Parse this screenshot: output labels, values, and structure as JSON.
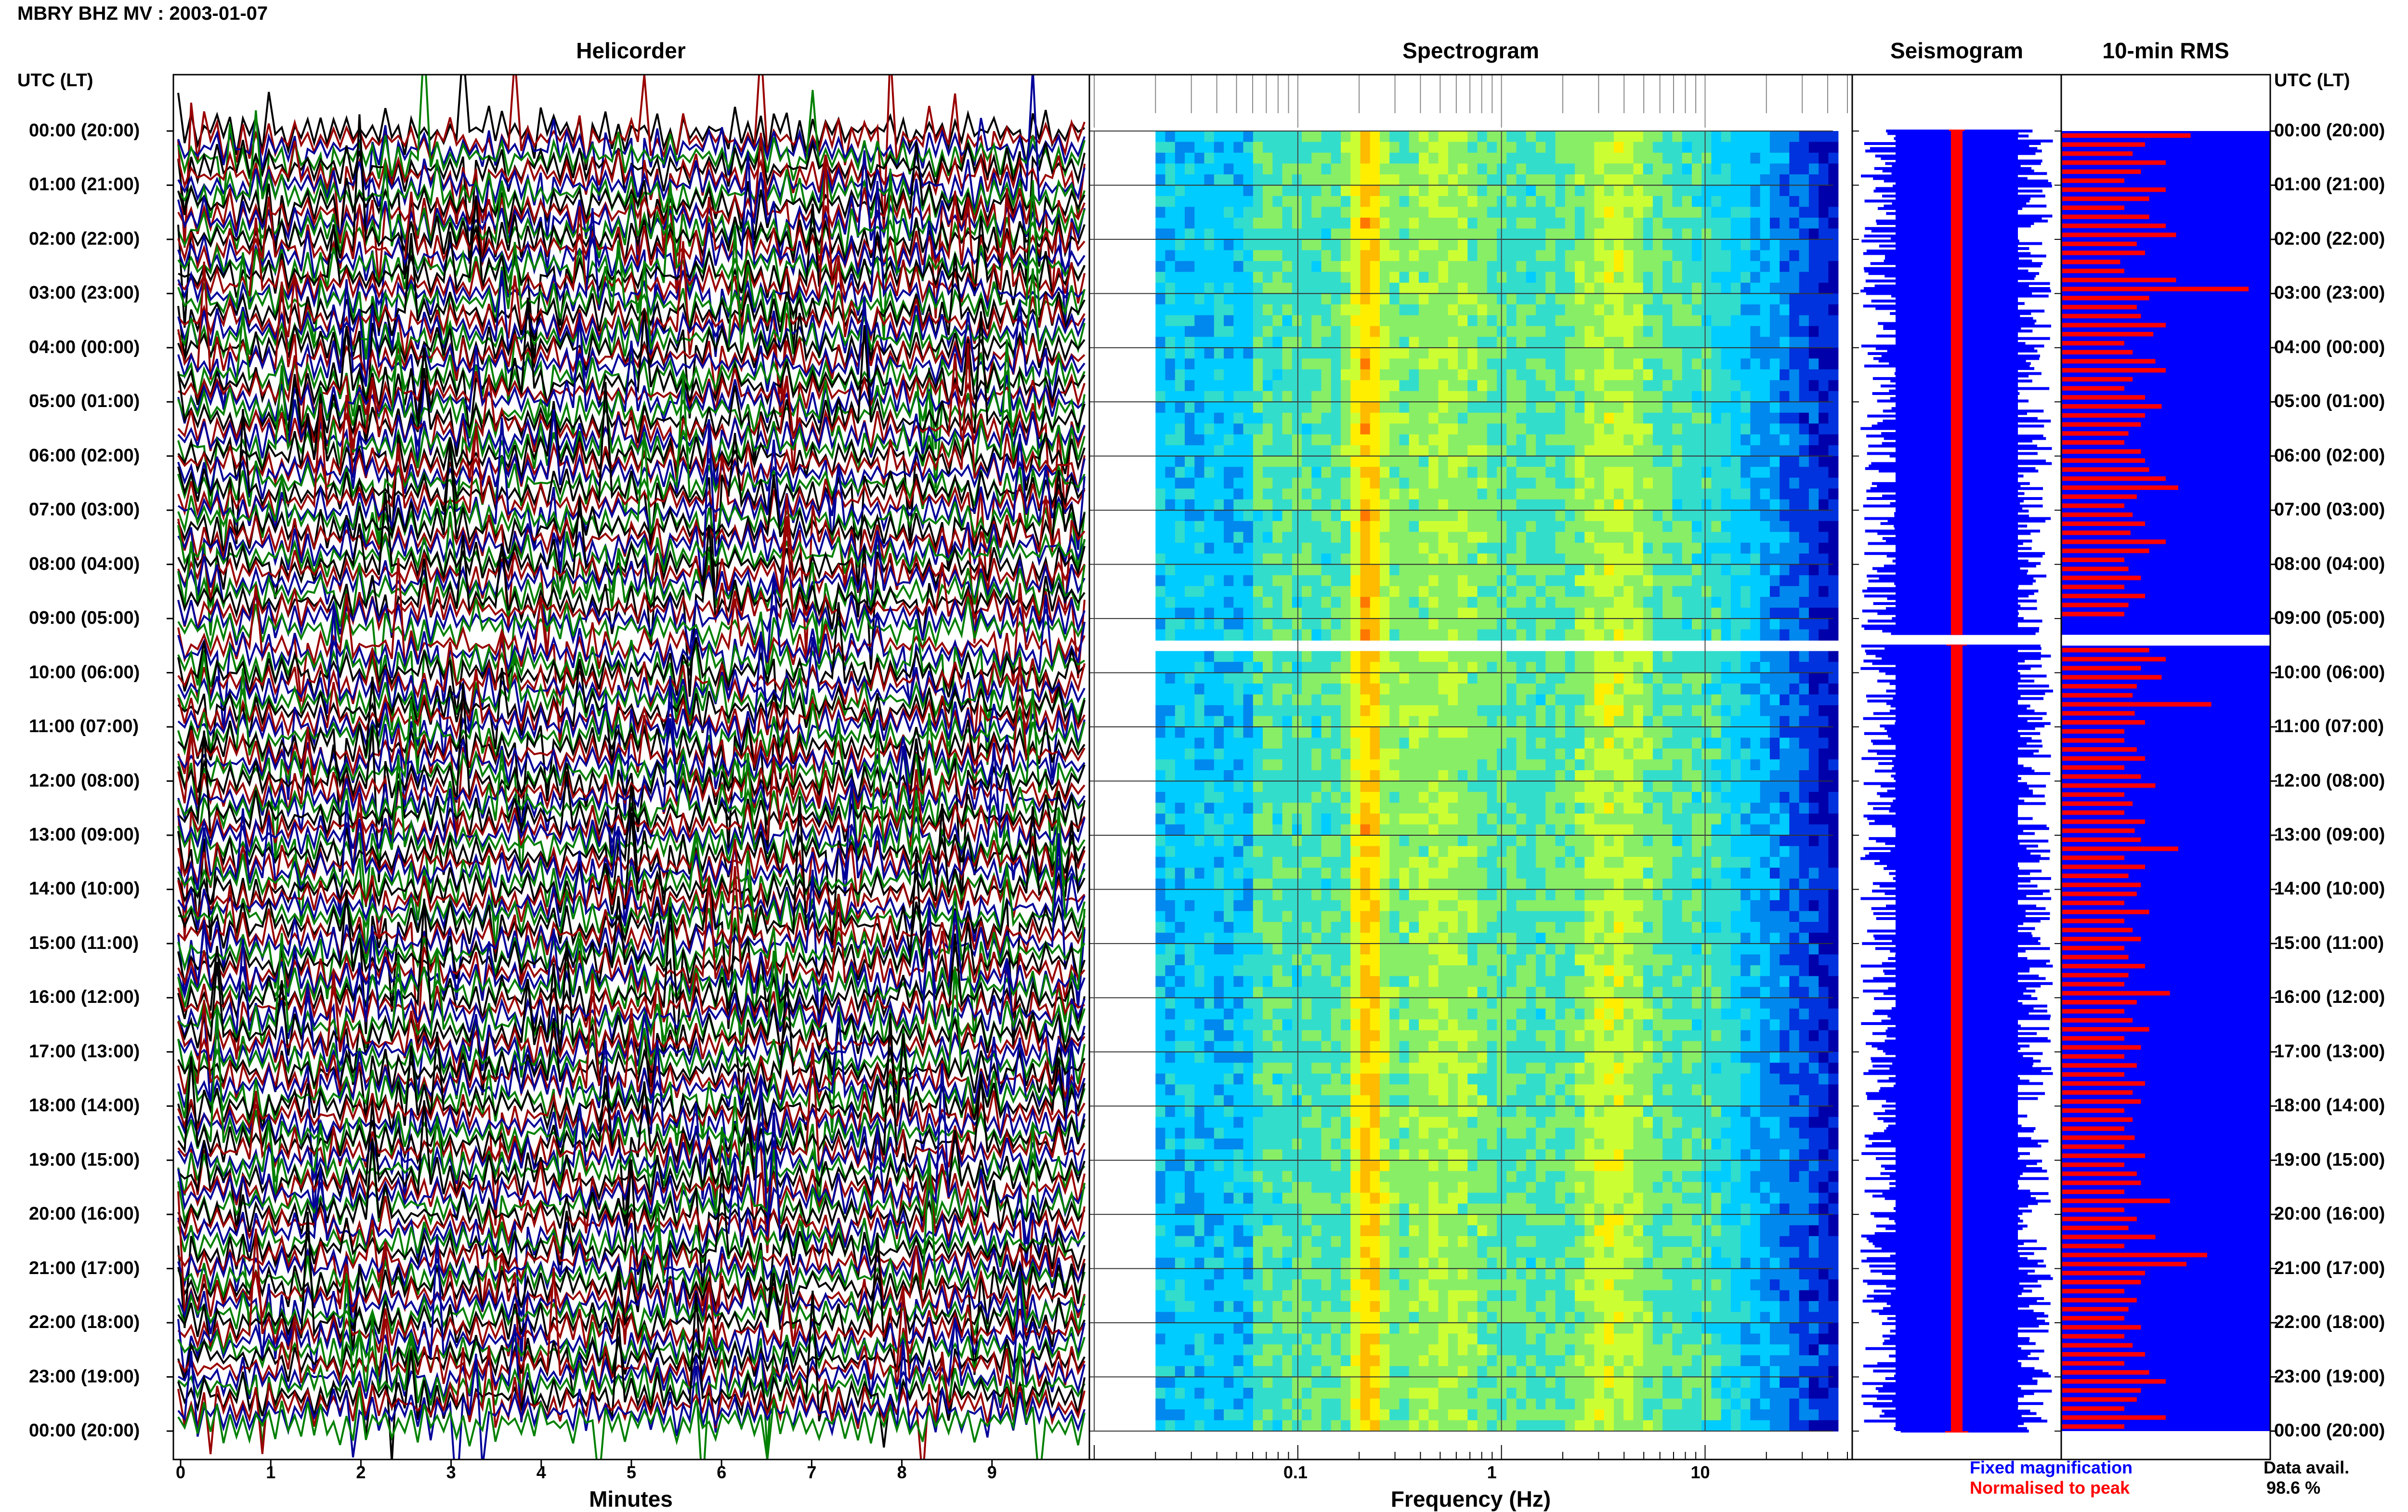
{
  "header": {
    "title": "MBRY BHZ MV : 2003-01-07"
  },
  "panels": {
    "helicorder": "Helicorder",
    "spectrogram": "Spectrogram",
    "seismogram": "Seismogram",
    "rms": "10-min RMS"
  },
  "time_axis": {
    "header_left": "UTC (LT)",
    "header_right": "UTC (LT)",
    "labels": [
      "00:00 (20:00)",
      "01:00 (21:00)",
      "02:00 (22:00)",
      "03:00 (23:00)",
      "04:00 (00:00)",
      "05:00 (01:00)",
      "06:00 (02:00)",
      "07:00 (03:00)",
      "08:00 (04:00)",
      "09:00 (05:00)",
      "10:00 (06:00)",
      "11:00 (07:00)",
      "12:00 (08:00)",
      "13:00 (09:00)",
      "14:00 (10:00)",
      "15:00 (11:00)",
      "16:00 (12:00)",
      "17:00 (13:00)",
      "18:00 (14:00)",
      "19:00 (15:00)",
      "20:00 (16:00)",
      "21:00 (17:00)",
      "22:00 (18:00)",
      "23:00 (19:00)",
      "00:00 (20:00)"
    ]
  },
  "legend": {
    "fixed": "Fixed magnification",
    "normalised": "Normalised to peak",
    "avail_label": "Data avail.",
    "avail_value": "98.6 %"
  },
  "colors": {
    "helicorder": [
      "#000000",
      "#990000",
      "#000099",
      "#008000"
    ],
    "fixed": "#0000ff",
    "normalised": "#ff0000"
  },
  "chart_data": [
    {
      "type": "line",
      "panel": "helicorder",
      "xlabel": "Minutes",
      "xticks": [
        0,
        1,
        2,
        3,
        4,
        5,
        6,
        7,
        8,
        9
      ],
      "xlim": [
        0,
        10
      ],
      "lines_per_hour": 6,
      "gap_utc_hours": [
        9.3,
        9.5
      ]
    },
    {
      "type": "heatmap",
      "panel": "spectrogram",
      "xlabel": "Frequency (Hz)",
      "xscale": "log",
      "xticks": [
        0.1,
        1,
        10
      ],
      "xtick_labels": [
        "0.1",
        "1",
        "10"
      ],
      "xlim": [
        0.01,
        50
      ],
      "peak_bands_hz": [
        0.22,
        3.5
      ],
      "gap_utc_hours": [
        9.3,
        9.5
      ]
    },
    {
      "type": "line",
      "panel": "seismogram",
      "series": [
        {
          "name": "Fixed magnification",
          "color": "#0000ff"
        },
        {
          "name": "Normalised to peak",
          "color": "#ff0000"
        }
      ]
    },
    {
      "type": "bar",
      "panel": "rms",
      "orientation": "horizontal",
      "interval_minutes": 10,
      "normalised_rms": [
        0.62,
        0.4,
        0.34,
        0.5,
        0.38,
        0.3,
        0.5,
        0.42,
        0.3,
        0.42,
        0.5,
        0.55,
        0.36,
        0.4,
        0.28,
        0.3,
        0.55,
        0.9,
        0.42,
        0.36,
        0.38,
        0.5,
        0.44,
        0.3,
        0.34,
        0.45,
        0.5,
        0.34,
        0.3,
        0.4,
        0.48,
        0.4,
        0.38,
        0.32,
        0.3,
        0.38,
        0.4,
        0.42,
        0.5,
        0.56,
        0.36,
        0.3,
        0.34,
        0.4,
        0.33,
        0.5,
        0.42,
        0.3,
        0.32,
        0.38,
        0.3,
        0.4,
        0.32,
        0.3,
        null,
        null,
        null,
        0.42,
        0.5,
        0.38,
        0.48,
        0.36,
        0.34,
        0.72,
        0.35,
        0.4,
        0.3,
        0.3,
        0.36,
        0.4,
        0.3,
        0.38,
        0.45,
        0.3,
        0.34,
        0.3,
        0.4,
        0.35,
        0.38,
        0.56,
        0.3,
        0.4,
        0.32,
        0.38,
        0.36,
        0.3,
        0.42,
        0.3,
        0.34,
        0.38,
        0.3,
        0.32,
        0.4,
        0.32,
        0.3,
        0.52,
        0.36,
        0.3,
        0.34,
        0.42,
        0.3,
        0.38,
        0.3,
        0.36,
        0.3,
        0.4,
        0.34,
        0.38,
        0.3,
        0.34,
        0.3,
        0.35,
        0.3,
        0.4,
        0.3,
        0.36,
        0.38,
        0.3,
        0.52,
        0.3,
        0.36,
        0.32,
        0.45,
        0.3,
        0.7,
        0.6,
        0.4,
        0.38,
        0.3,
        0.36,
        0.32,
        0.3,
        0.38,
        0.3,
        0.34,
        0.4,
        0.3,
        0.42,
        0.5,
        0.38,
        0.36,
        0.3,
        0.5,
        0.3
      ]
    }
  ]
}
